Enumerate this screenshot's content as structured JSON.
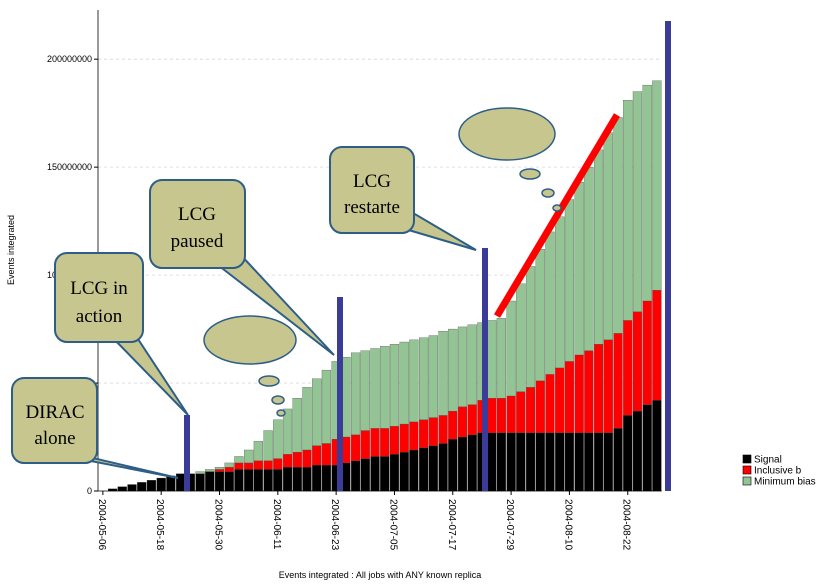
{
  "chart_data": {
    "type": "bar",
    "stacked": true,
    "y_label": "Events integrated",
    "x_label": "Events integrated : All jobs with ANY known replica",
    "categories": [
      "2004-05-06",
      null,
      null,
      null,
      null,
      null,
      "2004-05-18",
      null,
      null,
      null,
      null,
      null,
      "2004-05-30",
      null,
      null,
      null,
      null,
      null,
      "2004-06-11",
      null,
      null,
      null,
      null,
      null,
      "2004-06-23",
      null,
      null,
      null,
      null,
      null,
      "2004-07-05",
      null,
      null,
      null,
      null,
      null,
      "2004-07-17",
      null,
      null,
      null,
      null,
      null,
      "2004-07-29",
      null,
      null,
      null,
      null,
      null,
      "2004-08-10",
      null,
      null,
      null,
      null,
      null,
      "2004-08-22",
      null,
      null,
      null
    ],
    "series": [
      {
        "name": "Signal",
        "color": "#000000",
        "values": [
          0,
          1000000.0,
          2000000.0,
          3000000.0,
          4000000.0,
          5000000.0,
          6000000.0,
          7000000.0,
          8000000.0,
          8000000.0,
          8000000.0,
          9000000.0,
          9000000.0,
          9000000.0,
          10000000.0,
          10000000.0,
          10000000.0,
          10000000.0,
          10000000.0,
          11000000.0,
          11000000.0,
          11000000.0,
          12000000.0,
          12000000.0,
          12000000.0,
          13000000.0,
          14000000.0,
          15000000.0,
          16000000.0,
          16000000.0,
          17000000.0,
          18000000.0,
          19000000.0,
          20000000.0,
          21000000.0,
          22000000.0,
          24000000.0,
          25000000.0,
          26000000.0,
          27000000.0,
          27000000.0,
          27000000.0,
          27000000.0,
          27000000.0,
          27000000.0,
          27000000.0,
          27000000.0,
          27000000.0,
          27000000.0,
          27000000.0,
          27000000.0,
          27000000.0,
          27000000.0,
          29000000.0,
          35000000.0,
          37000000.0,
          40000000.0,
          42000000.0
        ]
      },
      {
        "name": "Inclusive b",
        "color": "#ff0000",
        "values": [
          0,
          0,
          0,
          0,
          0,
          0,
          0,
          0,
          0,
          0,
          0,
          0,
          1000000.0,
          2000000.0,
          3000000.0,
          3000000.0,
          4000000.0,
          4000000.0,
          5000000.0,
          6000000.0,
          7000000.0,
          8000000.0,
          9000000.0,
          10000000.0,
          12000000.0,
          12000000.0,
          12000000.0,
          13000000.0,
          13000000.0,
          13000000.0,
          13000000.0,
          13000000.0,
          13000000.0,
          13000000.0,
          13000000.0,
          13000000.0,
          13000000.0,
          14000000.0,
          14000000.0,
          15000000.0,
          16000000.0,
          16000000.0,
          17000000.0,
          19000000.0,
          21000000.0,
          24000000.0,
          27000000.0,
          30000000.0,
          33000000.0,
          36000000.0,
          38000000.0,
          41000000.0,
          43000000.0,
          44000000.0,
          44000000.0,
          46000000.0,
          48000000.0,
          51000000.0
        ]
      },
      {
        "name": "Minimum bias",
        "color": "#93c493",
        "values": [
          0,
          0,
          0,
          0,
          0,
          0,
          0,
          0,
          0,
          0,
          1000000.0,
          1000000.0,
          1000000.0,
          2000000.0,
          3000000.0,
          6000000.0,
          9000000.0,
          14000000.0,
          18000000.0,
          21000000.0,
          25000000.0,
          29000000.0,
          31000000.0,
          34000000.0,
          36000000.0,
          37000000.0,
          38000000.0,
          37000000.0,
          37000000.0,
          38000000.0,
          38000000.0,
          38000000.0,
          38000000.0,
          38000000.0,
          38000000.0,
          39000000.0,
          38000000.0,
          37000000.0,
          37000000.0,
          36000000.0,
          36000000.0,
          37000000.0,
          44000000.0,
          50000000.0,
          56000000.0,
          61000000.0,
          66000000.0,
          70000000.0,
          75000000.0,
          80000000.0,
          85000000.0,
          90000000.0,
          96000000.0,
          100000000.0,
          102000000.0,
          102000000.0,
          100000000.0,
          97000000.0
        ]
      }
    ],
    "ylim": [
      0,
      220000000
    ],
    "yticks": [
      0,
      50000000,
      100000000,
      150000000,
      200000000
    ],
    "grid": true,
    "legend": "lower right",
    "annotations": [
      [
        "DIRAC",
        "alone"
      ],
      [
        "LCG in",
        "action"
      ],
      [
        "LCG",
        "paused"
      ],
      [
        "LCG",
        "restarte"
      ]
    ]
  }
}
